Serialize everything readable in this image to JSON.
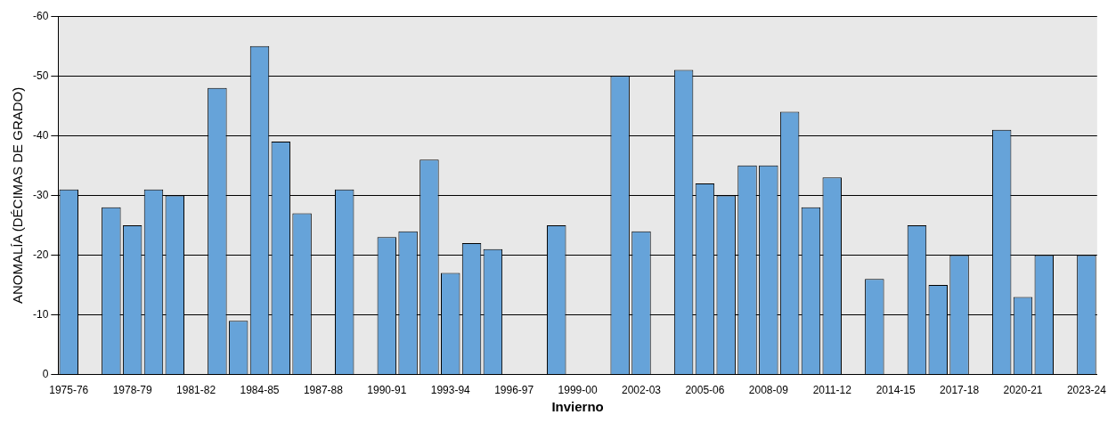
{
  "chart_data": {
    "type": "bar",
    "xlabel": "Invierno",
    "ylabel": "ANOMALÍA (DÉCIMAS DE GRADO)",
    "categories": [
      "1975-76",
      null,
      null,
      "1978-79",
      null,
      null,
      "1981-82",
      null,
      null,
      "1984-85",
      null,
      null,
      "1987-88",
      null,
      null,
      "1990-91",
      null,
      null,
      "1993-94",
      null,
      null,
      "1996-97",
      null,
      null,
      "1999-00",
      null,
      null,
      "2002-03",
      null,
      null,
      "2005-06",
      null,
      null,
      "2008-09",
      null,
      null,
      "2011-12",
      null,
      null,
      "2014-15",
      null,
      null,
      "2017-18",
      null,
      null,
      "2020-21",
      null,
      null,
      "2023-24"
    ],
    "values": [
      -31,
      null,
      -28,
      -25,
      -31,
      -30,
      null,
      -48,
      -9,
      -55,
      -39,
      -27,
      null,
      -31,
      null,
      -23,
      -24,
      -36,
      -17,
      -22,
      -21,
      null,
      null,
      -25,
      null,
      null,
      -50,
      -24,
      null,
      -51,
      -32,
      -30,
      -35,
      -35,
      -44,
      -28,
      -33,
      null,
      -16,
      null,
      -25,
      -15,
      -20,
      null,
      -41,
      -13,
      -20,
      null,
      -20
    ],
    "color": "#66a3d9",
    "ylim": [
      0,
      -60
    ],
    "yticks": [
      -60,
      -50,
      -40,
      -30,
      -20,
      -10,
      0
    ],
    "grid": "y"
  }
}
